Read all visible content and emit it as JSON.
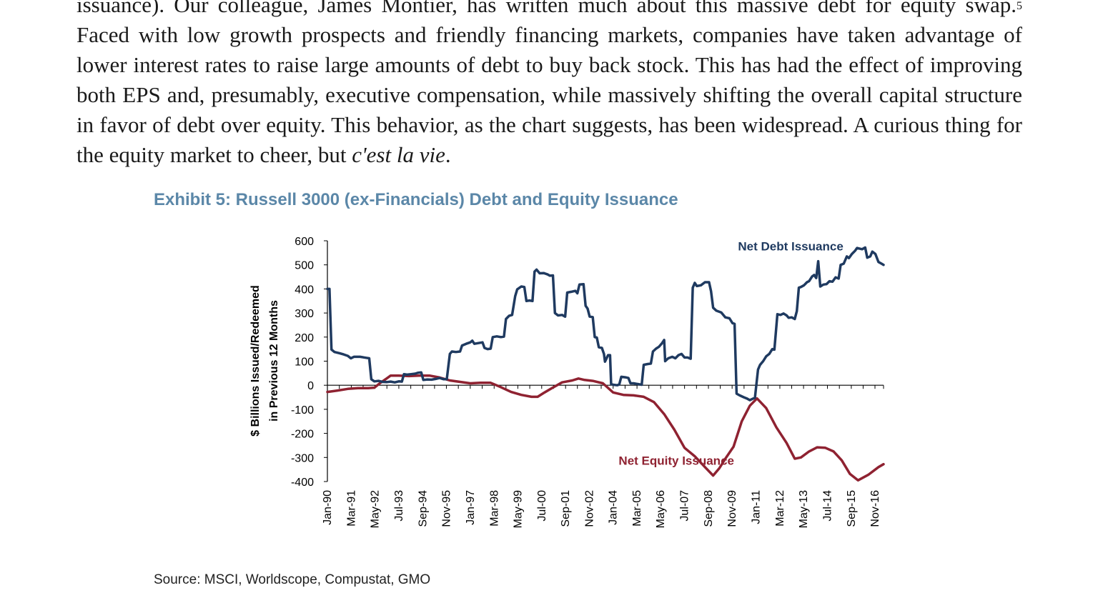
{
  "article": {
    "line1_start": "issuance). Our colleague, James Montier, has written much about this massive debt for equity swap.",
    "footnote_mark": "5",
    "line_rest": "Faced with low growth prospects and friendly financing markets, companies have taken advantage of lower interest rates to raise large amounts of debt to buy back stock. This has had the effect of improving both EPS and, presumably, executive compensation, while massively shifting the overall capital structure in favor of debt over equity. This behavior, as the chart suggests, has been widespread. A curious thing for the equity market to cheer, but ",
    "italic_phrase": "c'est la vie",
    "end_punct": "."
  },
  "exhibit": {
    "title": "Exhibit 5: Russell 3000 (ex-Financials) Debt and Equity Issuance",
    "source": "Source: MSCI, Worldscope, Compustat, GMO"
  },
  "chart_data": {
    "type": "line",
    "ylabel_line1": "$ Billions Issued/Redeemed",
    "ylabel_line2": "in Previous 12 Months",
    "ylim": [
      -400,
      600
    ],
    "yticks": [
      600,
      500,
      400,
      300,
      200,
      100,
      0,
      -100,
      -200,
      -300,
      -400
    ],
    "xlim": [
      1990.0,
      2017.25
    ],
    "xticks": [
      {
        "label": "Jan-90",
        "t": 1990.0
      },
      {
        "label": "Mar-91",
        "t": 1991.17
      },
      {
        "label": "May-92",
        "t": 1992.33
      },
      {
        "label": "Jul-93",
        "t": 1993.5
      },
      {
        "label": "Sep-94",
        "t": 1994.67
      },
      {
        "label": "Nov-95",
        "t": 1995.83
      },
      {
        "label": "Jan-97",
        "t": 1997.0
      },
      {
        "label": "Mar-98",
        "t": 1998.17
      },
      {
        "label": "May-99",
        "t": 1999.33
      },
      {
        "label": "Jul-00",
        "t": 2000.5
      },
      {
        "label": "Sep-01",
        "t": 2001.67
      },
      {
        "label": "Nov-02",
        "t": 2002.83
      },
      {
        "label": "Jan-04",
        "t": 2004.0
      },
      {
        "label": "Mar-05",
        "t": 2005.17
      },
      {
        "label": "May-06",
        "t": 2006.33
      },
      {
        "label": "Jul-07",
        "t": 2007.5
      },
      {
        "label": "Sep-08",
        "t": 2008.67
      },
      {
        "label": "Nov-09",
        "t": 2009.83
      },
      {
        "label": "Jan-11",
        "t": 2011.0
      },
      {
        "label": "Mar-12",
        "t": 2012.17
      },
      {
        "label": "May-13",
        "t": 2013.33
      },
      {
        "label": "Jul-14",
        "t": 2014.5
      },
      {
        "label": "Sep-15",
        "t": 2015.67
      },
      {
        "label": "Nov-16",
        "t": 2016.83
      }
    ],
    "grid": false,
    "series": [
      {
        "name": "Net Debt Issuance",
        "color": "#1f3a60",
        "label_anchor": [
          2012.7,
          560
        ],
        "points": [
          [
            1990.0,
            400
          ],
          [
            1990.1,
            400
          ],
          [
            1990.2,
            148
          ],
          [
            1990.35,
            138
          ],
          [
            1990.6,
            133
          ],
          [
            1990.8,
            128
          ],
          [
            1991.0,
            122
          ],
          [
            1991.15,
            112
          ],
          [
            1991.3,
            118
          ],
          [
            1991.6,
            118
          ],
          [
            1991.9,
            114
          ],
          [
            1992.05,
            112
          ],
          [
            1992.15,
            25
          ],
          [
            1992.3,
            16
          ],
          [
            1992.5,
            18
          ],
          [
            1992.7,
            14
          ],
          [
            1992.9,
            13
          ],
          [
            1993.1,
            15
          ],
          [
            1993.3,
            12
          ],
          [
            1993.5,
            16
          ],
          [
            1993.65,
            15
          ],
          [
            1993.75,
            46
          ],
          [
            1993.9,
            44
          ],
          [
            1994.1,
            46
          ],
          [
            1994.3,
            48
          ],
          [
            1994.45,
            52
          ],
          [
            1994.6,
            53
          ],
          [
            1994.7,
            22
          ],
          [
            1994.9,
            24
          ],
          [
            1995.1,
            23
          ],
          [
            1995.3,
            26
          ],
          [
            1995.5,
            30
          ],
          [
            1995.7,
            25
          ],
          [
            1995.85,
            25
          ],
          [
            1996.0,
            130
          ],
          [
            1996.1,
            140
          ],
          [
            1996.3,
            138
          ],
          [
            1996.5,
            140
          ],
          [
            1996.6,
            165
          ],
          [
            1996.8,
            172
          ],
          [
            1997.0,
            178
          ],
          [
            1997.1,
            185
          ],
          [
            1997.2,
            172
          ],
          [
            1997.4,
            175
          ],
          [
            1997.6,
            178
          ],
          [
            1997.7,
            155
          ],
          [
            1997.85,
            150
          ],
          [
            1998.0,
            152
          ],
          [
            1998.1,
            200
          ],
          [
            1998.3,
            203
          ],
          [
            1998.5,
            200
          ],
          [
            1998.65,
            202
          ],
          [
            1998.75,
            275
          ],
          [
            1998.9,
            288
          ],
          [
            1999.05,
            292
          ],
          [
            1999.2,
            370
          ],
          [
            1999.3,
            398
          ],
          [
            1999.5,
            410
          ],
          [
            1999.65,
            408
          ],
          [
            1999.75,
            350
          ],
          [
            1999.9,
            352
          ],
          [
            2000.05,
            350
          ],
          [
            2000.15,
            472
          ],
          [
            2000.25,
            480
          ],
          [
            2000.4,
            465
          ],
          [
            2000.6,
            466
          ],
          [
            2000.8,
            460
          ],
          [
            2000.9,
            455
          ],
          [
            2001.05,
            456
          ],
          [
            2001.15,
            300
          ],
          [
            2001.3,
            290
          ],
          [
            2001.5,
            292
          ],
          [
            2001.65,
            285
          ],
          [
            2001.75,
            385
          ],
          [
            2001.95,
            388
          ],
          [
            2002.15,
            392
          ],
          [
            2002.25,
            382
          ],
          [
            2002.35,
            418
          ],
          [
            2002.55,
            420
          ],
          [
            2002.65,
            330
          ],
          [
            2002.75,
            318
          ],
          [
            2002.85,
            285
          ],
          [
            2003.0,
            283
          ],
          [
            2003.1,
            200
          ],
          [
            2003.2,
            198
          ],
          [
            2003.3,
            158
          ],
          [
            2003.45,
            155
          ],
          [
            2003.55,
            130
          ],
          [
            2003.6,
            98
          ],
          [
            2003.75,
            125
          ],
          [
            2003.85,
            125
          ],
          [
            2003.9,
            5
          ],
          [
            2004.0,
            2
          ],
          [
            2004.2,
            0
          ],
          [
            2004.3,
            3
          ],
          [
            2004.4,
            35
          ],
          [
            2004.6,
            33
          ],
          [
            2004.75,
            30
          ],
          [
            2004.85,
            8
          ],
          [
            2005.0,
            8
          ],
          [
            2005.2,
            5
          ],
          [
            2005.4,
            2
          ],
          [
            2005.5,
            85
          ],
          [
            2005.7,
            88
          ],
          [
            2005.85,
            90
          ],
          [
            2005.95,
            140
          ],
          [
            2006.1,
            152
          ],
          [
            2006.25,
            160
          ],
          [
            2006.4,
            175
          ],
          [
            2006.5,
            188
          ],
          [
            2006.55,
            100
          ],
          [
            2006.7,
            112
          ],
          [
            2006.9,
            118
          ],
          [
            2007.05,
            112
          ],
          [
            2007.2,
            125
          ],
          [
            2007.35,
            130
          ],
          [
            2007.5,
            115
          ],
          [
            2007.65,
            115
          ],
          [
            2007.8,
            110
          ],
          [
            2007.9,
            405
          ],
          [
            2008.0,
            425
          ],
          [
            2008.1,
            412
          ],
          [
            2008.3,
            415
          ],
          [
            2008.5,
            428
          ],
          [
            2008.7,
            428
          ],
          [
            2008.8,
            390
          ],
          [
            2008.9,
            322
          ],
          [
            2009.05,
            310
          ],
          [
            2009.3,
            302
          ],
          [
            2009.5,
            282
          ],
          [
            2009.7,
            278
          ],
          [
            2009.85,
            258
          ],
          [
            2009.95,
            255
          ],
          [
            2010.05,
            -35
          ],
          [
            2010.2,
            -42
          ],
          [
            2010.4,
            -50
          ],
          [
            2010.55,
            -55
          ],
          [
            2010.7,
            -62
          ],
          [
            2010.8,
            -58
          ],
          [
            2010.95,
            -52
          ],
          [
            2011.1,
            65
          ],
          [
            2011.2,
            85
          ],
          [
            2011.35,
            100
          ],
          [
            2011.5,
            120
          ],
          [
            2011.65,
            130
          ],
          [
            2011.8,
            150
          ],
          [
            2011.9,
            148
          ],
          [
            2012.05,
            295
          ],
          [
            2012.2,
            292
          ],
          [
            2012.35,
            298
          ],
          [
            2012.5,
            290
          ],
          [
            2012.6,
            280
          ],
          [
            2012.75,
            282
          ],
          [
            2012.9,
            275
          ],
          [
            2013.0,
            308
          ],
          [
            2013.1,
            405
          ],
          [
            2013.2,
            408
          ],
          [
            2013.35,
            415
          ],
          [
            2013.5,
            428
          ],
          [
            2013.6,
            432
          ],
          [
            2013.75,
            452
          ],
          [
            2013.85,
            458
          ],
          [
            2013.95,
            445
          ],
          [
            2014.05,
            515
          ],
          [
            2014.15,
            410
          ],
          [
            2014.3,
            418
          ],
          [
            2014.45,
            420
          ],
          [
            2014.6,
            432
          ],
          [
            2014.75,
            430
          ],
          [
            2014.9,
            448
          ],
          [
            2015.05,
            443
          ],
          [
            2015.15,
            500
          ],
          [
            2015.3,
            505
          ],
          [
            2015.45,
            535
          ],
          [
            2015.55,
            528
          ],
          [
            2015.7,
            545
          ],
          [
            2015.85,
            558
          ],
          [
            2015.95,
            570
          ],
          [
            2016.05,
            568
          ],
          [
            2016.2,
            565
          ],
          [
            2016.35,
            572
          ],
          [
            2016.45,
            530
          ],
          [
            2016.6,
            535
          ],
          [
            2016.7,
            555
          ],
          [
            2016.85,
            545
          ],
          [
            2017.0,
            512
          ],
          [
            2017.15,
            505
          ],
          [
            2017.25,
            500
          ]
        ]
      },
      {
        "name": "Net Equity Issuance",
        "color": "#8f2231",
        "label_anchor": [
          2007.1,
          -330
        ],
        "points": [
          [
            1990.0,
            -28
          ],
          [
            1990.5,
            -22
          ],
          [
            1991.0,
            -15
          ],
          [
            1991.5,
            -12
          ],
          [
            1992.0,
            -12
          ],
          [
            1992.3,
            -10
          ],
          [
            1992.6,
            10
          ],
          [
            1992.9,
            28
          ],
          [
            1993.1,
            40
          ],
          [
            1993.5,
            40
          ],
          [
            1994.0,
            38
          ],
          [
            1994.5,
            40
          ],
          [
            1995.0,
            40
          ],
          [
            1995.5,
            32
          ],
          [
            1996.0,
            20
          ],
          [
            1996.5,
            14
          ],
          [
            1997.0,
            8
          ],
          [
            1997.5,
            10
          ],
          [
            1998.0,
            10
          ],
          [
            1998.5,
            -8
          ],
          [
            1999.0,
            -28
          ],
          [
            1999.5,
            -40
          ],
          [
            2000.0,
            -48
          ],
          [
            2000.3,
            -48
          ],
          [
            2000.6,
            -32
          ],
          [
            2001.0,
            -12
          ],
          [
            2001.5,
            12
          ],
          [
            2002.0,
            20
          ],
          [
            2002.3,
            28
          ],
          [
            2002.6,
            22
          ],
          [
            2003.0,
            18
          ],
          [
            2003.5,
            8
          ],
          [
            2004.0,
            -30
          ],
          [
            2004.5,
            -40
          ],
          [
            2005.0,
            -42
          ],
          [
            2005.5,
            -48
          ],
          [
            2006.0,
            -70
          ],
          [
            2006.5,
            -120
          ],
          [
            2007.0,
            -185
          ],
          [
            2007.5,
            -260
          ],
          [
            2008.0,
            -295
          ],
          [
            2008.5,
            -340
          ],
          [
            2008.9,
            -375
          ],
          [
            2009.2,
            -345
          ],
          [
            2009.5,
            -305
          ],
          [
            2009.9,
            -255
          ],
          [
            2010.3,
            -150
          ],
          [
            2010.7,
            -85
          ],
          [
            2011.05,
            -55
          ],
          [
            2011.5,
            -95
          ],
          [
            2012.0,
            -175
          ],
          [
            2012.5,
            -240
          ],
          [
            2012.9,
            -305
          ],
          [
            2013.2,
            -300
          ],
          [
            2013.6,
            -275
          ],
          [
            2014.0,
            -258
          ],
          [
            2014.4,
            -260
          ],
          [
            2014.8,
            -275
          ],
          [
            2015.2,
            -312
          ],
          [
            2015.6,
            -368
          ],
          [
            2016.0,
            -395
          ],
          [
            2016.5,
            -372
          ],
          [
            2017.0,
            -340
          ],
          [
            2017.25,
            -328
          ]
        ]
      }
    ]
  }
}
